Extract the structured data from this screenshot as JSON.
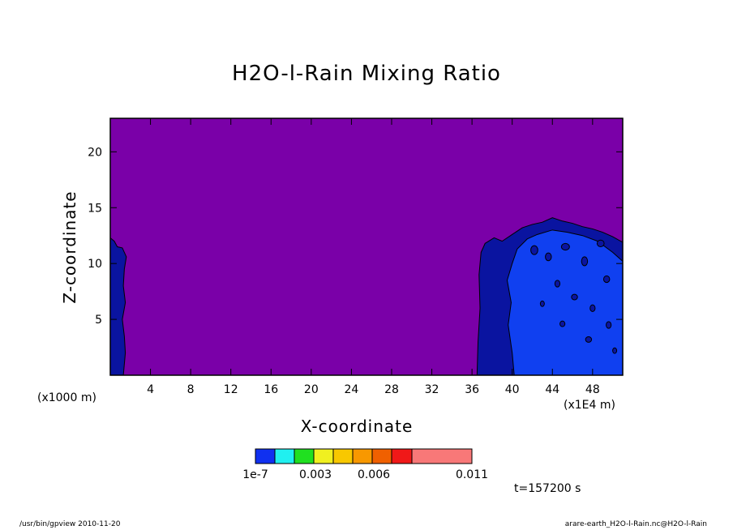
{
  "chart_data": {
    "type": "heatmap",
    "title": "H2O-l-Rain Mixing Ratio",
    "xlabel": "X-coordinate",
    "ylabel": "Z-coordinate",
    "x_unit": "(x1E4 m)",
    "y_unit": "(x1000 m)",
    "xlim": [
      0,
      51
    ],
    "ylim": [
      0,
      23
    ],
    "x_ticks": [
      4,
      8,
      12,
      16,
      20,
      24,
      28,
      32,
      36,
      40,
      44,
      48
    ],
    "y_ticks": [
      5,
      10,
      15,
      20
    ],
    "contour_levels": [
      1e-07,
      0.001,
      0.002,
      0.003,
      0.004,
      0.005,
      0.006,
      0.007,
      0.011
    ],
    "colorbar_labels": [
      "1e-7",
      "0.003",
      "0.006",
      "0.011"
    ],
    "colorbar_colors": [
      "#1030f0",
      "#20f0f0",
      "#20e020",
      "#f0f020",
      "#f8c800",
      "#f89800",
      "#f06000",
      "#f01818",
      "#f87878"
    ],
    "background_color": "#7a00a8",
    "regions": [
      {
        "name": "left-low-level",
        "color": "#0a14a0",
        "x_range": [
          0,
          1.6
        ],
        "z_top": 12.3
      },
      {
        "name": "right-cloud-outer",
        "color": "#0a14a0",
        "x_range": [
          36.5,
          51
        ],
        "z_top": 14.1
      },
      {
        "name": "right-cloud-inner",
        "color": "#1040f0",
        "x_range": [
          40,
          51
        ],
        "z_top": 13
      }
    ]
  },
  "time_label": "t=157200 s",
  "footer_left": "/usr/bin/gpview   2010-11-20",
  "footer_right": "arare-earth_H2O-l-Rain.nc@H2O-l-Rain"
}
